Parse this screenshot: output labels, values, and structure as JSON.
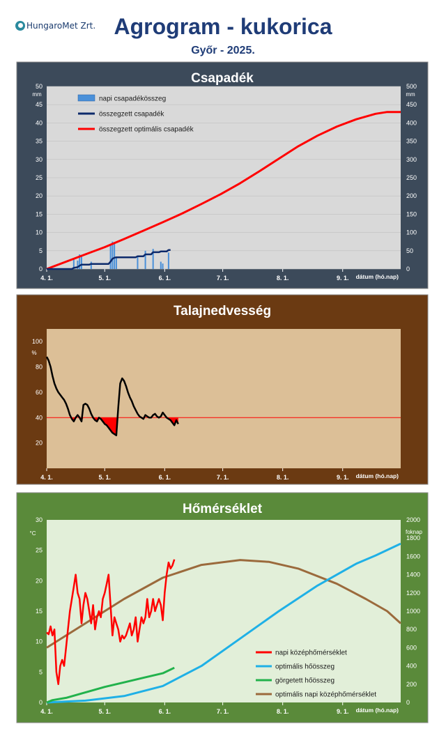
{
  "header": {
    "logo_text": "HungaroMet Zrt.",
    "title": "Agrogram - kukorica",
    "subtitle": "Győr - 2025."
  },
  "colors": {
    "panel1_frame": "#3c4a5a",
    "panel2_frame": "#6b3a12",
    "panel3_frame": "#5a8a3a",
    "plot1_bg": "#d9d9d9",
    "plot2_bg": "#dcbf97",
    "plot3_bg": "#e2efd9",
    "red": "#ff0000",
    "navy": "#0d2a6b",
    "blue_bar": "#4a90d9",
    "cyan": "#1fb0e6",
    "green": "#22b24c",
    "brown": "#9b6a3c"
  },
  "chart_data": [
    {
      "type": "bar+line",
      "title": "Csapadék",
      "xlabel": "dátum (hó.nap)",
      "x_ticks": [
        "4. 1.",
        "5. 1.",
        "6. 1.",
        "7. 1.",
        "8. 1.",
        "9. 1."
      ],
      "x_range_days": [
        0,
        183
      ],
      "y_left": {
        "unit": "mm",
        "range": [
          0,
          50
        ],
        "ticks": [
          "0",
          "5",
          "10",
          "15",
          "20",
          "25",
          "30",
          "35",
          "40",
          "45",
          "50"
        ]
      },
      "y_right": {
        "unit": "mm",
        "range": [
          0,
          500
        ],
        "ticks": [
          "0",
          "50",
          "100",
          "150",
          "200",
          "250",
          "300",
          "350",
          "400",
          "450",
          "500"
        ]
      },
      "legend": [
        "napi csapadékösszeg",
        "összegzett csapadék",
        "összegzett optimális csapadék"
      ],
      "series": [
        {
          "name": "napi csapadékösszeg",
          "axis": "left",
          "kind": "bar",
          "points": [
            [
              14,
              2.8
            ],
            [
              16,
              2.3
            ],
            [
              17,
              4.0
            ],
            [
              18,
              3.5
            ],
            [
              23,
              2.0
            ],
            [
              33,
              6.5
            ],
            [
              34,
              7.5
            ],
            [
              35,
              7.0
            ],
            [
              36,
              3.0
            ],
            [
              47,
              3.5
            ],
            [
              51,
              5.0
            ],
            [
              55,
              5.5
            ],
            [
              59,
              2.0
            ],
            [
              60,
              1.5
            ],
            [
              63,
              4.5
            ]
          ]
        },
        {
          "name": "összegzett csapadék",
          "axis": "right",
          "kind": "line",
          "points": [
            [
              0,
              0
            ],
            [
              13,
              0
            ],
            [
              14,
              3
            ],
            [
              16,
              5
            ],
            [
              17,
              9
            ],
            [
              18,
              12
            ],
            [
              22,
              12
            ],
            [
              23,
              14
            ],
            [
              32,
              14
            ],
            [
              33,
              20
            ],
            [
              34,
              28
            ],
            [
              35,
              31
            ],
            [
              36,
              32
            ],
            [
              46,
              32
            ],
            [
              47,
              35
            ],
            [
              50,
              35
            ],
            [
              51,
              40
            ],
            [
              54,
              40
            ],
            [
              55,
              46
            ],
            [
              58,
              46
            ],
            [
              59,
              48
            ],
            [
              62,
              48
            ],
            [
              63,
              52
            ],
            [
              64,
              52
            ]
          ]
        },
        {
          "name": "összegzett optimális csapadék",
          "axis": "right",
          "kind": "line",
          "points": [
            [
              0,
              0
            ],
            [
              10,
              20
            ],
            [
              20,
              40
            ],
            [
              30,
              60
            ],
            [
              40,
              82
            ],
            [
              50,
              105
            ],
            [
              60,
              128
            ],
            [
              70,
              152
            ],
            [
              80,
              178
            ],
            [
              90,
              205
            ],
            [
              100,
              235
            ],
            [
              110,
              268
            ],
            [
              120,
              302
            ],
            [
              130,
              336
            ],
            [
              140,
              365
            ],
            [
              150,
              390
            ],
            [
              160,
              410
            ],
            [
              170,
              425
            ],
            [
              176,
              430
            ],
            [
              183,
              430
            ]
          ]
        }
      ]
    },
    {
      "type": "line",
      "title": "Talajnedvesség",
      "xlabel": "dátum (hó.nap)",
      "x_ticks": [
        "4. 1.",
        "5. 1.",
        "6. 1.",
        "7. 1.",
        "8. 1.",
        "9. 1."
      ],
      "x_range_days": [
        0,
        183
      ],
      "y": {
        "unit": "%",
        "range": [
          0,
          110
        ],
        "ticks": [
          "20",
          "40",
          "60",
          "80",
          "100"
        ]
      },
      "threshold": 40,
      "series": [
        {
          "name": "talajnedvesség",
          "points": [
            [
              0,
              88
            ],
            [
              1,
              85
            ],
            [
              2,
              80
            ],
            [
              3,
              73
            ],
            [
              4,
              67
            ],
            [
              5,
              63
            ],
            [
              6,
              60
            ],
            [
              7,
              58
            ],
            [
              8,
              56
            ],
            [
              9,
              54
            ],
            [
              10,
              51
            ],
            [
              11,
              47
            ],
            [
              12,
              42
            ],
            [
              13,
              39
            ],
            [
              14,
              37
            ],
            [
              15,
              40
            ],
            [
              16,
              42
            ],
            [
              17,
              40
            ],
            [
              18,
              37
            ],
            [
              19,
              50
            ],
            [
              20,
              51
            ],
            [
              21,
              50
            ],
            [
              22,
              47
            ],
            [
              23,
              43
            ],
            [
              24,
              40
            ],
            [
              25,
              38
            ],
            [
              26,
              37
            ],
            [
              27,
              40
            ],
            [
              28,
              39
            ],
            [
              29,
              37
            ],
            [
              30,
              35
            ],
            [
              31,
              34
            ],
            [
              32,
              32
            ],
            [
              33,
              30
            ],
            [
              34,
              28
            ],
            [
              35,
              27
            ],
            [
              36,
              26
            ],
            [
              37,
              48
            ],
            [
              38,
              67
            ],
            [
              39,
              71
            ],
            [
              40,
              69
            ],
            [
              41,
              65
            ],
            [
              42,
              60
            ],
            [
              43,
              56
            ],
            [
              44,
              53
            ],
            [
              45,
              49
            ],
            [
              46,
              46
            ],
            [
              47,
              43
            ],
            [
              48,
              41
            ],
            [
              49,
              40
            ],
            [
              50,
              39
            ],
            [
              51,
              42
            ],
            [
              52,
              41
            ],
            [
              53,
              40
            ],
            [
              54,
              40
            ],
            [
              55,
              42
            ],
            [
              56,
              43
            ],
            [
              57,
              41
            ],
            [
              58,
              40
            ],
            [
              59,
              41
            ],
            [
              60,
              44
            ],
            [
              61,
              42
            ],
            [
              62,
              40
            ],
            [
              63,
              39
            ],
            [
              64,
              38
            ],
            [
              65,
              36
            ],
            [
              66,
              34
            ],
            [
              67,
              38
            ],
            [
              68,
              35
            ]
          ]
        }
      ]
    },
    {
      "type": "line",
      "title": "Hőmérséklet",
      "xlabel": "dátum (hó.nap)",
      "x_ticks": [
        "4. 1.",
        "5. 1.",
        "6. 1.",
        "7. 1.",
        "8. 1.",
        "9. 1."
      ],
      "x_range_days": [
        0,
        183
      ],
      "y_left": {
        "unit": "°C",
        "range": [
          0,
          30
        ],
        "ticks": [
          "0",
          "5",
          "10",
          "15",
          "20",
          "25",
          "30"
        ]
      },
      "y_right": {
        "unit": "foknap",
        "range": [
          0,
          2000
        ],
        "ticks": [
          "0",
          "200",
          "400",
          "600",
          "800",
          "1000",
          "1200",
          "1400",
          "1600",
          "1800",
          "2000"
        ]
      },
      "legend": [
        "napi középhőmérséklet",
        "optimális hőösszeg",
        "görgetett hőösszeg",
        "optimális napi középhőmérséklet"
      ],
      "series": [
        {
          "name": "napi középhőmérséklet",
          "axis": "left",
          "points": [
            [
              0,
              11.5
            ],
            [
              1,
              11.2
            ],
            [
              2,
              12.5
            ],
            [
              3,
              11
            ],
            [
              4,
              12
            ],
            [
              5,
              5
            ],
            [
              6,
              3
            ],
            [
              7,
              6
            ],
            [
              8,
              7
            ],
            [
              9,
              6
            ],
            [
              10,
              9
            ],
            [
              11,
              12
            ],
            [
              12,
              15
            ],
            [
              13,
              17
            ],
            [
              14,
              19
            ],
            [
              15,
              21
            ],
            [
              16,
              18
            ],
            [
              17,
              17
            ],
            [
              18,
              13
            ],
            [
              19,
              16
            ],
            [
              20,
              18
            ],
            [
              21,
              17
            ],
            [
              22,
              15
            ],
            [
              23,
              13
            ],
            [
              24,
              16
            ],
            [
              25,
              12
            ],
            [
              26,
              14
            ],
            [
              27,
              15
            ],
            [
              28,
              14
            ],
            [
              29,
              17
            ],
            [
              30,
              18
            ],
            [
              31,
              19.5
            ],
            [
              32,
              21
            ],
            [
              33,
              16
            ],
            [
              34,
              11
            ],
            [
              35,
              14
            ],
            [
              36,
              13
            ],
            [
              37,
              12
            ],
            [
              38,
              10
            ],
            [
              39,
              11
            ],
            [
              40,
              10.5
            ],
            [
              41,
              11
            ],
            [
              42,
              12
            ],
            [
              43,
              13
            ],
            [
              44,
              11
            ],
            [
              45,
              12
            ],
            [
              46,
              14
            ],
            [
              47,
              10
            ],
            [
              48,
              12
            ],
            [
              49,
              14
            ],
            [
              50,
              13
            ],
            [
              51,
              14
            ],
            [
              52,
              17
            ],
            [
              53,
              14
            ],
            [
              54,
              15
            ],
            [
              55,
              17
            ],
            [
              56,
              15
            ],
            [
              57,
              16
            ],
            [
              58,
              17
            ],
            [
              59,
              16
            ],
            [
              60,
              13.5
            ],
            [
              61,
              18
            ],
            [
              62,
              21
            ],
            [
              63,
              23
            ],
            [
              64,
              22
            ],
            [
              65,
              22.5
            ],
            [
              66,
              23.5
            ]
          ]
        },
        {
          "name": "optimális hőösszeg",
          "axis": "right",
          "points": [
            [
              0,
              0
            ],
            [
              20,
              20
            ],
            [
              40,
              70
            ],
            [
              60,
              180
            ],
            [
              80,
              400
            ],
            [
              100,
              700
            ],
            [
              120,
              1000
            ],
            [
              140,
              1280
            ],
            [
              160,
              1520
            ],
            [
              170,
              1610
            ],
            [
              183,
              1740
            ]
          ]
        },
        {
          "name": "görgetett hőösszeg",
          "axis": "right",
          "points": [
            [
              0,
              0
            ],
            [
              3,
              25
            ],
            [
              10,
              50
            ],
            [
              20,
              110
            ],
            [
              30,
              170
            ],
            [
              40,
              220
            ],
            [
              50,
              270
            ],
            [
              60,
              320
            ],
            [
              66,
              380
            ]
          ]
        },
        {
          "name": "optimális napi középhőmérséklet",
          "axis": "left",
          "points": [
            [
              0,
              9
            ],
            [
              20,
              13
            ],
            [
              40,
              17
            ],
            [
              60,
              20.5
            ],
            [
              80,
              22.6
            ],
            [
              100,
              23.4
            ],
            [
              115,
              23.1
            ],
            [
              130,
              22
            ],
            [
              150,
              19.5
            ],
            [
              165,
              17
            ],
            [
              176,
              15
            ],
            [
              183,
              13
            ]
          ]
        }
      ]
    }
  ]
}
